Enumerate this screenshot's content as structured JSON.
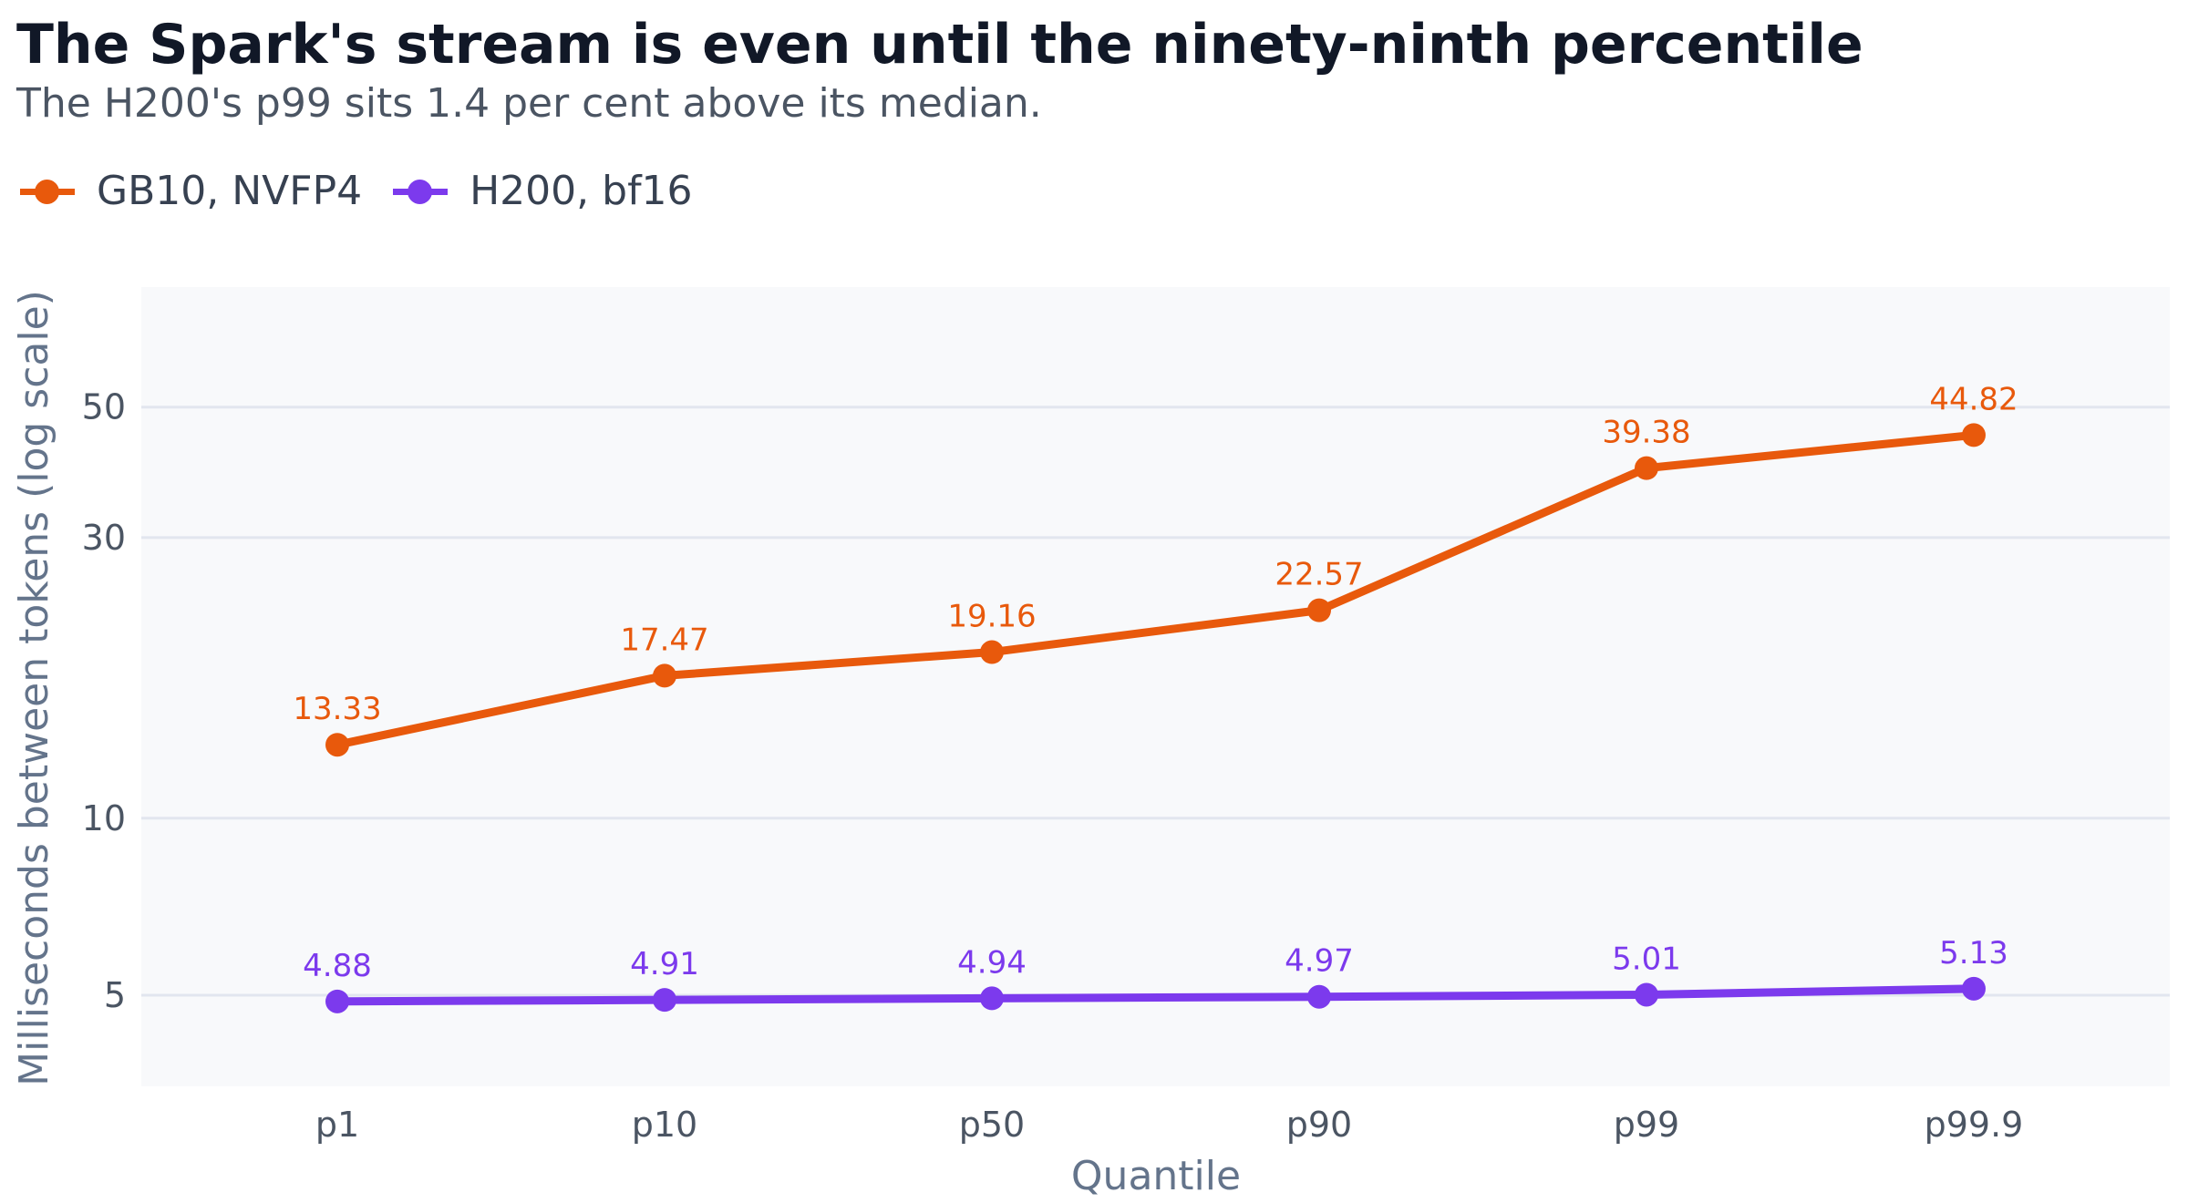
{
  "title": "The Spark's stream is even until the ninety-ninth percentile",
  "subtitle": "The H200's p99 sits 1.4 per cent above its median.",
  "chart_data": {
    "type": "line",
    "title": "The Spark's stream is even until the ninety-ninth percentile",
    "subtitle": "The H200's p99 sits 1.4 per cent above its median.",
    "xlabel": "Quantile",
    "ylabel": "Milliseconds between tokens (log scale)",
    "y_scale": "log",
    "ylim": [
      3.5,
      80
    ],
    "yticks": [
      5,
      10,
      30,
      50
    ],
    "grid": true,
    "legend_position": "top-left",
    "categories": [
      "p1",
      "p10",
      "p50",
      "p90",
      "p99",
      "p99.9"
    ],
    "series": [
      {
        "name": "GB10, NVFP4",
        "color": "#e8590c",
        "values": [
          13.33,
          17.47,
          19.16,
          22.57,
          39.38,
          44.82
        ],
        "labels": [
          "13.33",
          "17.47",
          "19.16",
          "22.57",
          "39.38",
          "44.82"
        ]
      },
      {
        "name": "H200, bf16",
        "color": "#7c3aed",
        "values": [
          4.88,
          4.91,
          4.94,
          4.97,
          5.01,
          5.13
        ],
        "labels": [
          "4.88",
          "4.91",
          "4.94",
          "4.97",
          "5.01",
          "5.13"
        ]
      }
    ]
  }
}
